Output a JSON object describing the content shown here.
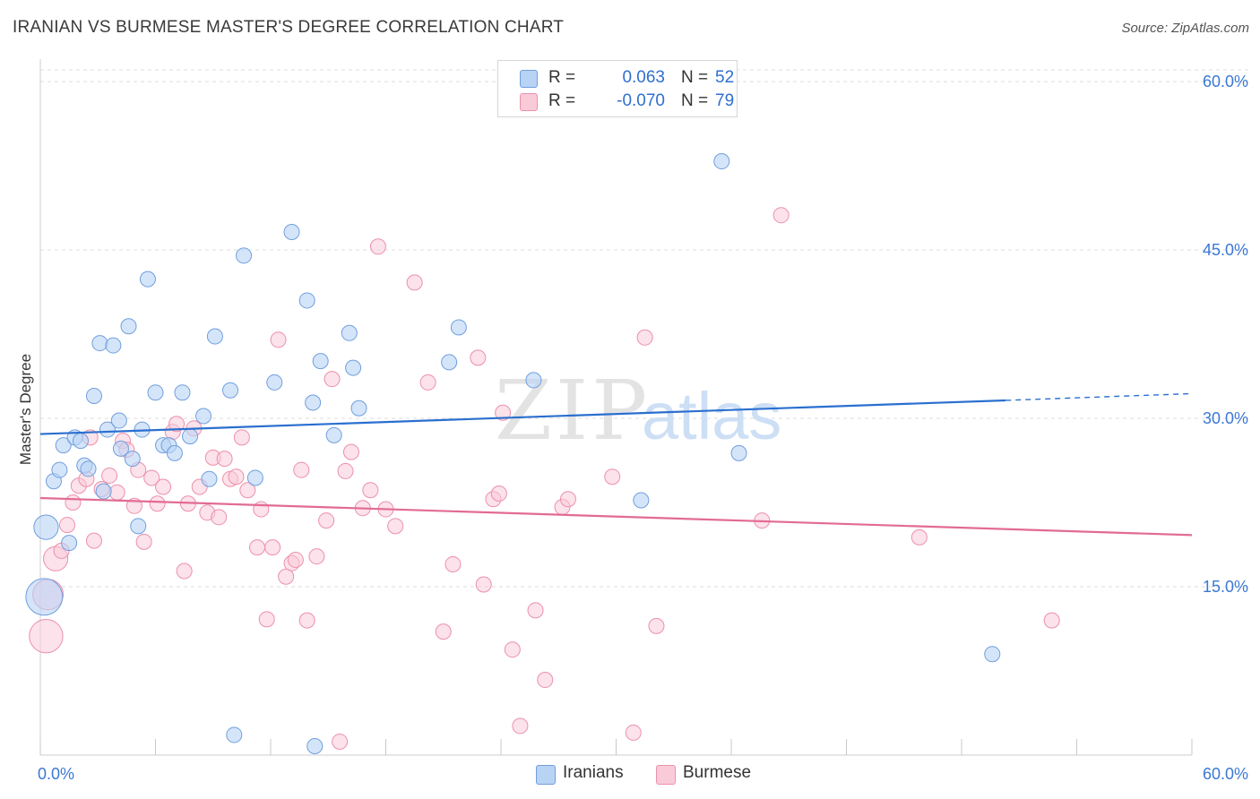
{
  "title": "IRANIAN VS BURMESE MASTER'S DEGREE CORRELATION CHART",
  "source": "Source: ZipAtlas.com",
  "watermark": {
    "zip": "ZIP",
    "atlas": "atlas"
  },
  "colors": {
    "iranians_fill": "#b9d3f5",
    "iranians_stroke": "#6f9fde",
    "iranians_line": "#2a6fcf",
    "burmese_fill": "#f9cbd8",
    "burmese_stroke": "#ec90ac",
    "burmese_line": "#e26b93",
    "axis_tick_text": "#3a78d4",
    "grid": "#dcdcdc"
  },
  "legend": {
    "rows": [
      {
        "r_label": "R =",
        "r_value": "0.063",
        "n_label": "N =",
        "n_value": "52"
      },
      {
        "r_label": "R =",
        "r_value": "-0.070",
        "n_label": "N =",
        "n_value": "79"
      }
    ]
  },
  "bottom_legend": {
    "iranians": "Iranians",
    "burmese": "Burmese"
  },
  "chart_data": {
    "type": "scatter",
    "title": "IRANIAN VS BURMESE MASTER'S DEGREE CORRELATION CHART",
    "xlabel": "",
    "ylabel": "Master's Degree",
    "xlim": [
      0,
      60
    ],
    "ylim": [
      0,
      62
    ],
    "x_tick_labels": [
      "0.0%",
      "60.0%"
    ],
    "y_ticks": [
      15,
      30,
      45,
      60
    ],
    "y_tick_labels": [
      "15.0%",
      "30.0%",
      "45.0%",
      "60.0%"
    ],
    "grid": "horizontal dashed",
    "legend_position": "top-center",
    "series": [
      {
        "name": "Iranians",
        "r": 0.063,
        "n": 52,
        "trend": {
          "x": [
            0,
            50.3,
            60
          ],
          "y": [
            28.6,
            31.6,
            32.2
          ],
          "dashed_from_x": 50.3
        },
        "points": [
          [
            0.3,
            20.3,
            1.6
          ],
          [
            0.2,
            14.1,
            2.4
          ],
          [
            0.7,
            24.4,
            1
          ],
          [
            1.0,
            25.4,
            1
          ],
          [
            1.2,
            27.6,
            1
          ],
          [
            1.5,
            18.9,
            1
          ],
          [
            1.8,
            28.3,
            1
          ],
          [
            2.1,
            28.0,
            1
          ],
          [
            2.3,
            25.8,
            1
          ],
          [
            2.5,
            25.5,
            1
          ],
          [
            2.8,
            32.0,
            1
          ],
          [
            3.1,
            36.7,
            1
          ],
          [
            3.3,
            23.5,
            1
          ],
          [
            3.5,
            29.0,
            1
          ],
          [
            3.8,
            36.5,
            1
          ],
          [
            4.1,
            29.8,
            1
          ],
          [
            4.2,
            27.3,
            1
          ],
          [
            4.6,
            38.2,
            1
          ],
          [
            4.8,
            26.4,
            1
          ],
          [
            5.1,
            20.4,
            1
          ],
          [
            5.3,
            29.0,
            1
          ],
          [
            5.6,
            42.4,
            1
          ],
          [
            6.0,
            32.3,
            1
          ],
          [
            6.4,
            27.6,
            1
          ],
          [
            6.7,
            27.6,
            1
          ],
          [
            7.0,
            26.9,
            1
          ],
          [
            7.4,
            32.3,
            1
          ],
          [
            7.8,
            28.4,
            1
          ],
          [
            8.5,
            30.2,
            1
          ],
          [
            8.8,
            24.6,
            1
          ],
          [
            9.1,
            37.3,
            1
          ],
          [
            9.9,
            32.5,
            1
          ],
          [
            10.1,
            1.8,
            1
          ],
          [
            10.6,
            44.5,
            1
          ],
          [
            11.2,
            24.7,
            1
          ],
          [
            12.2,
            33.2,
            1
          ],
          [
            13.1,
            46.6,
            1
          ],
          [
            13.9,
            40.5,
            1
          ],
          [
            14.2,
            31.4,
            1
          ],
          [
            14.3,
            0.8,
            1
          ],
          [
            14.6,
            35.1,
            1
          ],
          [
            15.3,
            28.5,
            1
          ],
          [
            16.1,
            37.6,
            1
          ],
          [
            16.3,
            34.5,
            1
          ],
          [
            16.6,
            30.9,
            1
          ],
          [
            21.3,
            35.0,
            1
          ],
          [
            21.8,
            38.1,
            1
          ],
          [
            25.7,
            33.4,
            1
          ],
          [
            31.3,
            22.7,
            1
          ],
          [
            35.5,
            52.9,
            1
          ],
          [
            36.4,
            26.9,
            1
          ],
          [
            49.6,
            9.0,
            1
          ]
        ]
      },
      {
        "name": "Burmese",
        "r": -0.07,
        "n": 79,
        "trend": {
          "x": [
            0,
            60
          ],
          "y": [
            22.9,
            19.6
          ]
        },
        "points": [
          [
            0.3,
            10.6,
            2.2
          ],
          [
            0.4,
            14.3,
            2.0
          ],
          [
            0.8,
            17.5,
            1.6
          ],
          [
            1.1,
            18.2,
            1
          ],
          [
            1.4,
            20.5,
            1
          ],
          [
            1.7,
            22.5,
            1
          ],
          [
            2.0,
            24.0,
            1
          ],
          [
            2.4,
            24.6,
            1
          ],
          [
            2.6,
            28.3,
            1
          ],
          [
            2.8,
            19.1,
            1
          ],
          [
            3.2,
            23.7,
            1
          ],
          [
            3.6,
            24.9,
            1
          ],
          [
            4.0,
            23.4,
            1
          ],
          [
            4.3,
            28.0,
            1
          ],
          [
            4.5,
            27.2,
            1
          ],
          [
            4.9,
            22.2,
            1
          ],
          [
            5.1,
            25.4,
            1
          ],
          [
            5.4,
            19.0,
            1
          ],
          [
            5.8,
            24.7,
            1
          ],
          [
            6.1,
            22.4,
            1
          ],
          [
            6.4,
            23.9,
            1
          ],
          [
            6.9,
            28.8,
            1
          ],
          [
            7.1,
            29.5,
            1
          ],
          [
            7.5,
            16.4,
            1
          ],
          [
            7.7,
            22.4,
            1
          ],
          [
            8.0,
            29.1,
            1
          ],
          [
            8.3,
            23.9,
            1
          ],
          [
            8.7,
            21.6,
            1
          ],
          [
            9.0,
            26.5,
            1
          ],
          [
            9.3,
            21.2,
            1
          ],
          [
            9.6,
            26.4,
            1
          ],
          [
            9.9,
            24.6,
            1
          ],
          [
            10.2,
            24.8,
            1
          ],
          [
            10.5,
            28.3,
            1
          ],
          [
            10.8,
            23.6,
            1
          ],
          [
            11.3,
            18.5,
            1
          ],
          [
            11.5,
            21.9,
            1
          ],
          [
            11.8,
            12.1,
            1
          ],
          [
            12.1,
            18.5,
            1
          ],
          [
            12.4,
            37.0,
            1
          ],
          [
            12.8,
            15.9,
            1
          ],
          [
            13.1,
            17.1,
            1
          ],
          [
            13.3,
            17.4,
            1
          ],
          [
            13.6,
            25.4,
            1
          ],
          [
            13.9,
            12.0,
            1
          ],
          [
            14.4,
            17.7,
            1
          ],
          [
            14.9,
            20.9,
            1
          ],
          [
            15.2,
            33.5,
            1
          ],
          [
            15.6,
            1.2,
            1
          ],
          [
            15.9,
            25.3,
            1
          ],
          [
            16.2,
            27.0,
            1
          ],
          [
            16.8,
            22.0,
            1
          ],
          [
            17.2,
            23.6,
            1
          ],
          [
            17.6,
            45.3,
            1
          ],
          [
            18.0,
            21.9,
            1
          ],
          [
            18.5,
            20.4,
            1
          ],
          [
            19.5,
            42.1,
            1
          ],
          [
            20.2,
            33.2,
            1
          ],
          [
            21.0,
            11.0,
            1
          ],
          [
            21.5,
            17.0,
            1
          ],
          [
            22.8,
            35.4,
            1
          ],
          [
            23.1,
            15.2,
            1
          ],
          [
            23.6,
            22.8,
            1
          ],
          [
            23.9,
            23.3,
            1
          ],
          [
            24.1,
            30.5,
            1
          ],
          [
            24.6,
            9.4,
            1
          ],
          [
            25.0,
            2.6,
            1
          ],
          [
            25.8,
            12.9,
            1
          ],
          [
            26.3,
            6.7,
            1
          ],
          [
            27.2,
            22.1,
            1
          ],
          [
            27.5,
            22.8,
            1
          ],
          [
            29.8,
            24.8,
            1
          ],
          [
            30.9,
            2.0,
            1
          ],
          [
            31.5,
            37.2,
            1
          ],
          [
            32.1,
            11.5,
            1
          ],
          [
            37.6,
            20.9,
            1
          ],
          [
            38.6,
            48.1,
            1
          ],
          [
            45.8,
            19.4,
            1
          ],
          [
            52.7,
            12.0,
            1
          ]
        ]
      }
    ]
  }
}
